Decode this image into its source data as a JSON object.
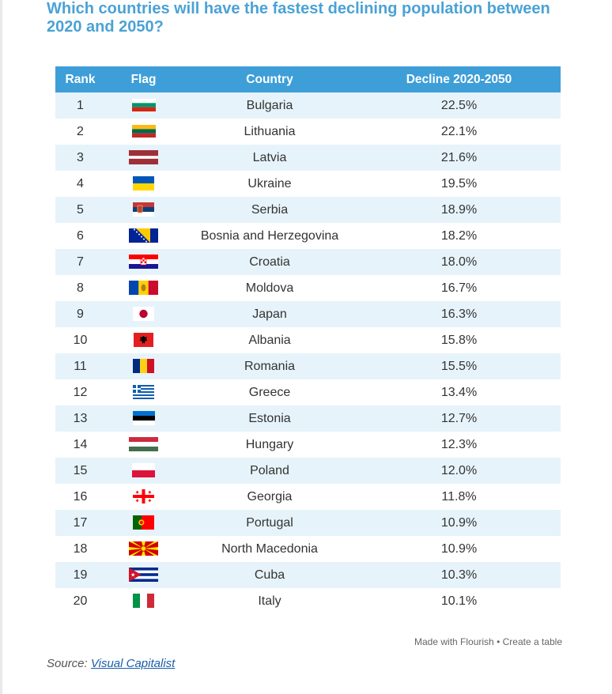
{
  "title": "Which countries will have the fastest declining population between 2020 and 2050?",
  "table": {
    "columns": [
      "Rank",
      "Flag",
      "Country",
      "Decline 2020-2050"
    ],
    "rows": [
      {
        "rank": "1",
        "flag": "bulgaria-flag-icon",
        "country": "Bulgaria",
        "decline": "22.5%"
      },
      {
        "rank": "2",
        "flag": "lithuania-flag-icon",
        "country": "Lithuania",
        "decline": "22.1%"
      },
      {
        "rank": "3",
        "flag": "latvia-flag-icon",
        "country": "Latvia",
        "decline": "21.6%"
      },
      {
        "rank": "4",
        "flag": "ukraine-flag-icon",
        "country": "Ukraine",
        "decline": "19.5%"
      },
      {
        "rank": "5",
        "flag": "serbia-flag-icon",
        "country": "Serbia",
        "decline": "18.9%"
      },
      {
        "rank": "6",
        "flag": "bosnia-flag-icon",
        "country": "Bosnia and Herzegovina",
        "decline": "18.2%"
      },
      {
        "rank": "7",
        "flag": "croatia-flag-icon",
        "country": "Croatia",
        "decline": "18.0%"
      },
      {
        "rank": "8",
        "flag": "moldova-flag-icon",
        "country": "Moldova",
        "decline": "16.7%"
      },
      {
        "rank": "9",
        "flag": "japan-flag-icon",
        "country": "Japan",
        "decline": "16.3%"
      },
      {
        "rank": "10",
        "flag": "albania-flag-icon",
        "country": "Albania",
        "decline": "15.8%"
      },
      {
        "rank": "11",
        "flag": "romania-flag-icon",
        "country": "Romania",
        "decline": "15.5%"
      },
      {
        "rank": "12",
        "flag": "greece-flag-icon",
        "country": "Greece",
        "decline": "13.4%"
      },
      {
        "rank": "13",
        "flag": "estonia-flag-icon",
        "country": "Estonia",
        "decline": "12.7%"
      },
      {
        "rank": "14",
        "flag": "hungary-flag-icon",
        "country": "Hungary",
        "decline": "12.3%"
      },
      {
        "rank": "15",
        "flag": "poland-flag-icon",
        "country": "Poland",
        "decline": "12.0%"
      },
      {
        "rank": "16",
        "flag": "georgia-flag-icon",
        "country": "Georgia",
        "decline": "11.8%"
      },
      {
        "rank": "17",
        "flag": "portugal-flag-icon",
        "country": "Portugal",
        "decline": "10.9%"
      },
      {
        "rank": "18",
        "flag": "north-macedonia-flag-icon",
        "country": "North Macedonia",
        "decline": "10.9%"
      },
      {
        "rank": "19",
        "flag": "cuba-flag-icon",
        "country": "Cuba",
        "decline": "10.3%"
      },
      {
        "rank": "20",
        "flag": "italy-flag-icon",
        "country": "Italy",
        "decline": "10.1%"
      }
    ]
  },
  "footer": {
    "made_with": "Made with Flourish",
    "separator": " • ",
    "create_table": "Create a table"
  },
  "source": {
    "label": "Source:",
    "link_text": "Visual Capitalist"
  },
  "colors": {
    "title": "#4aa2d6",
    "header_bg": "#3e9ed8",
    "stripe": "#e6f3fa",
    "link": "#1a5fa8"
  }
}
